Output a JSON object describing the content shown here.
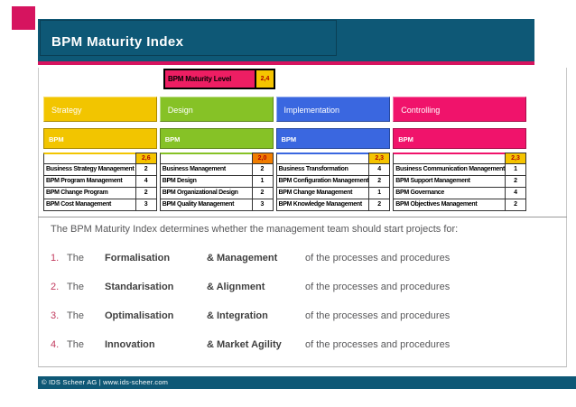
{
  "slide": {
    "title": "BPM Maturity Index",
    "footer": "© IDS Scheer AG | www.ids-scheer.com"
  },
  "maturity_header": {
    "label": "BPM Maturity Level",
    "value": "2,4"
  },
  "columns": [
    {
      "name": "Strategy",
      "sub": "BPM",
      "score": "2,6",
      "color": "#f2c500",
      "score_bg": "#f5c400",
      "items": [
        {
          "label": "Business Strategy Management",
          "value": "2"
        },
        {
          "label": "BPM Program Management",
          "value": "4"
        },
        {
          "label": "BPM Change Program",
          "value": "2"
        },
        {
          "label": "BPM Cost Management",
          "value": "3"
        }
      ]
    },
    {
      "name": "Design",
      "sub": "BPM",
      "score": "2,0",
      "color": "#86c226",
      "score_bg": "#f07d00",
      "items": [
        {
          "label": "Business Management",
          "value": "2"
        },
        {
          "label": "BPM Design",
          "value": "1"
        },
        {
          "label": "BPM Organizational Design",
          "value": "2"
        },
        {
          "label": "BPM Quality Management",
          "value": "3"
        }
      ]
    },
    {
      "name": "Implementation",
      "sub": "BPM",
      "score": "2,3",
      "color": "#3a67e0",
      "score_bg": "#f5c400",
      "items": [
        {
          "label": "Business Transformation",
          "value": "4"
        },
        {
          "label": "BPM Configuration Management",
          "value": "2"
        },
        {
          "label": "BPM Change Management",
          "value": "1"
        },
        {
          "label": "BPM Knowledge Management",
          "value": "2"
        }
      ]
    },
    {
      "name": "Controlling",
      "sub": "BPM",
      "score": "2,3",
      "color": "#f0136b",
      "score_bg": "#f5c400",
      "items": [
        {
          "label": "Business Communication Management",
          "value": "1"
        },
        {
          "label": "BPM Support Management",
          "value": "2"
        },
        {
          "label": "BPM Governance",
          "value": "4"
        },
        {
          "label": "BPM Objectives Management",
          "value": "2"
        }
      ]
    }
  ],
  "body": {
    "intro": "The BPM Maturity Index determines whether the management team should start projects for:",
    "list": [
      {
        "num": "1.",
        "the": "The",
        "term": "Formalisation",
        "amp": "& Management",
        "rest": "of the processes and procedures"
      },
      {
        "num": "2.",
        "the": "The",
        "term": "Standarisation",
        "amp": "& Alignment",
        "rest": "of the processes and procedures"
      },
      {
        "num": "3.",
        "the": "The",
        "term": "Optimalisation",
        "amp": "& Integration",
        "rest": "of the processes and procedures"
      },
      {
        "num": "4.",
        "the": "The",
        "term": "Innovation",
        "amp": "& Market Agility",
        "rest": "of the processes and procedures"
      }
    ]
  },
  "colors": {
    "teal": "#0e5876",
    "accent_pink": "#d6145f",
    "maturity_label_bg": "#ed1e63",
    "maturity_value_bg": "#f5c400",
    "strategy": "#f2c500",
    "design": "#86c226",
    "implementation": "#3a67e0",
    "controlling": "#f0136b",
    "score_orange": "#f07d00"
  }
}
